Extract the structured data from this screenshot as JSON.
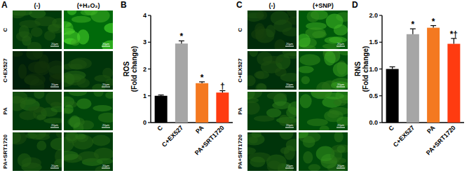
{
  "chart_data": [
    {
      "type": "bar",
      "title": "B",
      "ylabel": [
        "ROS",
        "(Fold change)"
      ],
      "categories": [
        "C",
        "C+EX527",
        "PA",
        "PA+SRT1720"
      ],
      "values": [
        1.0,
        2.95,
        1.47,
        1.12
      ],
      "errors": [
        0.03,
        0.1,
        0.05,
        0.07
      ],
      "annotations": [
        null,
        "*",
        "*",
        "†"
      ],
      "colors": [
        "#000000",
        "#a6a6a6",
        "#f47920",
        "#ff3b10"
      ],
      "ylim": [
        0,
        4
      ],
      "yticks": [
        0,
        1,
        2,
        3,
        4
      ]
    },
    {
      "type": "bar",
      "title": "D",
      "ylabel": [
        "RNS",
        "(Fold change)"
      ],
      "categories": [
        "C",
        "C+EX527",
        "PA",
        "PA+SRT1720"
      ],
      "values": [
        1.0,
        1.65,
        1.77,
        1.47
      ],
      "errors": [
        0.04,
        0.1,
        0.04,
        0.1
      ],
      "annotations": [
        null,
        "*",
        "*",
        "*†"
      ],
      "colors": [
        "#000000",
        "#a6a6a6",
        "#f47920",
        "#ff3b10"
      ],
      "ylim": [
        0,
        2
      ],
      "yticks": [
        {
          "value": 0,
          "label": "0.0"
        },
        {
          "value": 0.5,
          "label": "0.5"
        },
        {
          "value": 1,
          "label": "1.0"
        },
        {
          "value": 1.5,
          "label": "1.5"
        },
        {
          "value": 2,
          "label": "2.0"
        }
      ]
    }
  ],
  "image_panels": [
    {
      "title": "A",
      "columns": [
        "(-)",
        "(+H₂O₂)"
      ],
      "rows": [
        "C",
        "C+EX527",
        "PA",
        "PA+SRT1720"
      ],
      "scale_bar": "20μm"
    },
    {
      "title": "C",
      "columns": [
        "(-)",
        "(+SNP)"
      ],
      "rows": [
        "C",
        "C+EX527",
        "PA",
        "PA+SRT1720"
      ],
      "scale_bar": "20μm"
    }
  ]
}
